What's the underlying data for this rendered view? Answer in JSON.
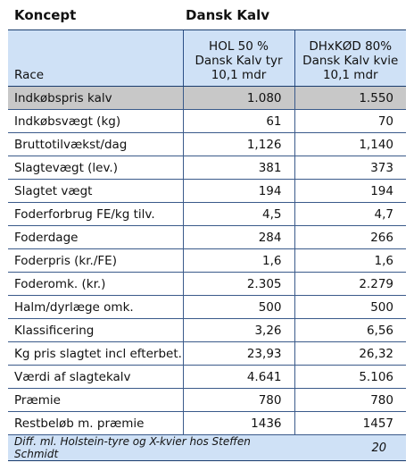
{
  "header": {
    "koncept": "Koncept",
    "title": "Dansk Kalv"
  },
  "columns": {
    "race": "Race",
    "col1": [
      "HOL 50 %",
      "Dansk Kalv tyr",
      "10,1 mdr"
    ],
    "col2": [
      "DHxKØD 80%",
      "Dansk Kalv kvie",
      "10,1 mdr"
    ]
  },
  "rows": [
    {
      "label": "Indkøbspris kalv",
      "v1": "1.080",
      "v2": "1.550"
    },
    {
      "label": "Indkøbsvægt (kg)",
      "v1": "61",
      "v2": "70"
    },
    {
      "label": "Bruttotilvækst/dag",
      "v1": "1,126",
      "v2": "1,140"
    },
    {
      "label": "Slagtevægt (lev.)",
      "v1": "381",
      "v2": "373"
    },
    {
      "label": "Slagtet vægt",
      "v1": "194",
      "v2": "194"
    },
    {
      "label": "Foderforbrug FE/kg tilv.",
      "v1": "4,5",
      "v2": "4,7"
    },
    {
      "label": "Foderdage",
      "v1": "284",
      "v2": "266"
    },
    {
      "label": "Foderpris (kr./FE)",
      "v1": "1,6",
      "v2": "1,6"
    },
    {
      "label": "Foderomk. (kr.)",
      "v1": "2.305",
      "v2": "2.279"
    },
    {
      "label": "Halm/dyrlæge omk.",
      "v1": "500",
      "v2": "500"
    },
    {
      "label": "Klassificering",
      "v1": "3,26",
      "v2": "6,56"
    },
    {
      "label": "Kg pris slagtet incl efterbet.",
      "v1": "23,93",
      "v2": "26,32"
    },
    {
      "label": "Værdi af slagtekalv",
      "v1": "4.641",
      "v2": "5.106"
    },
    {
      "label": "Præmie",
      "v1": "780",
      "v2": "780"
    },
    {
      "label": "Restbeløb m. præmie",
      "v1": "1436",
      "v2": "1457"
    }
  ],
  "footer": {
    "caption": "Diff. ml. Holstein-tyre og X-kvier hos Steffen Schmidt",
    "value": "20"
  }
}
